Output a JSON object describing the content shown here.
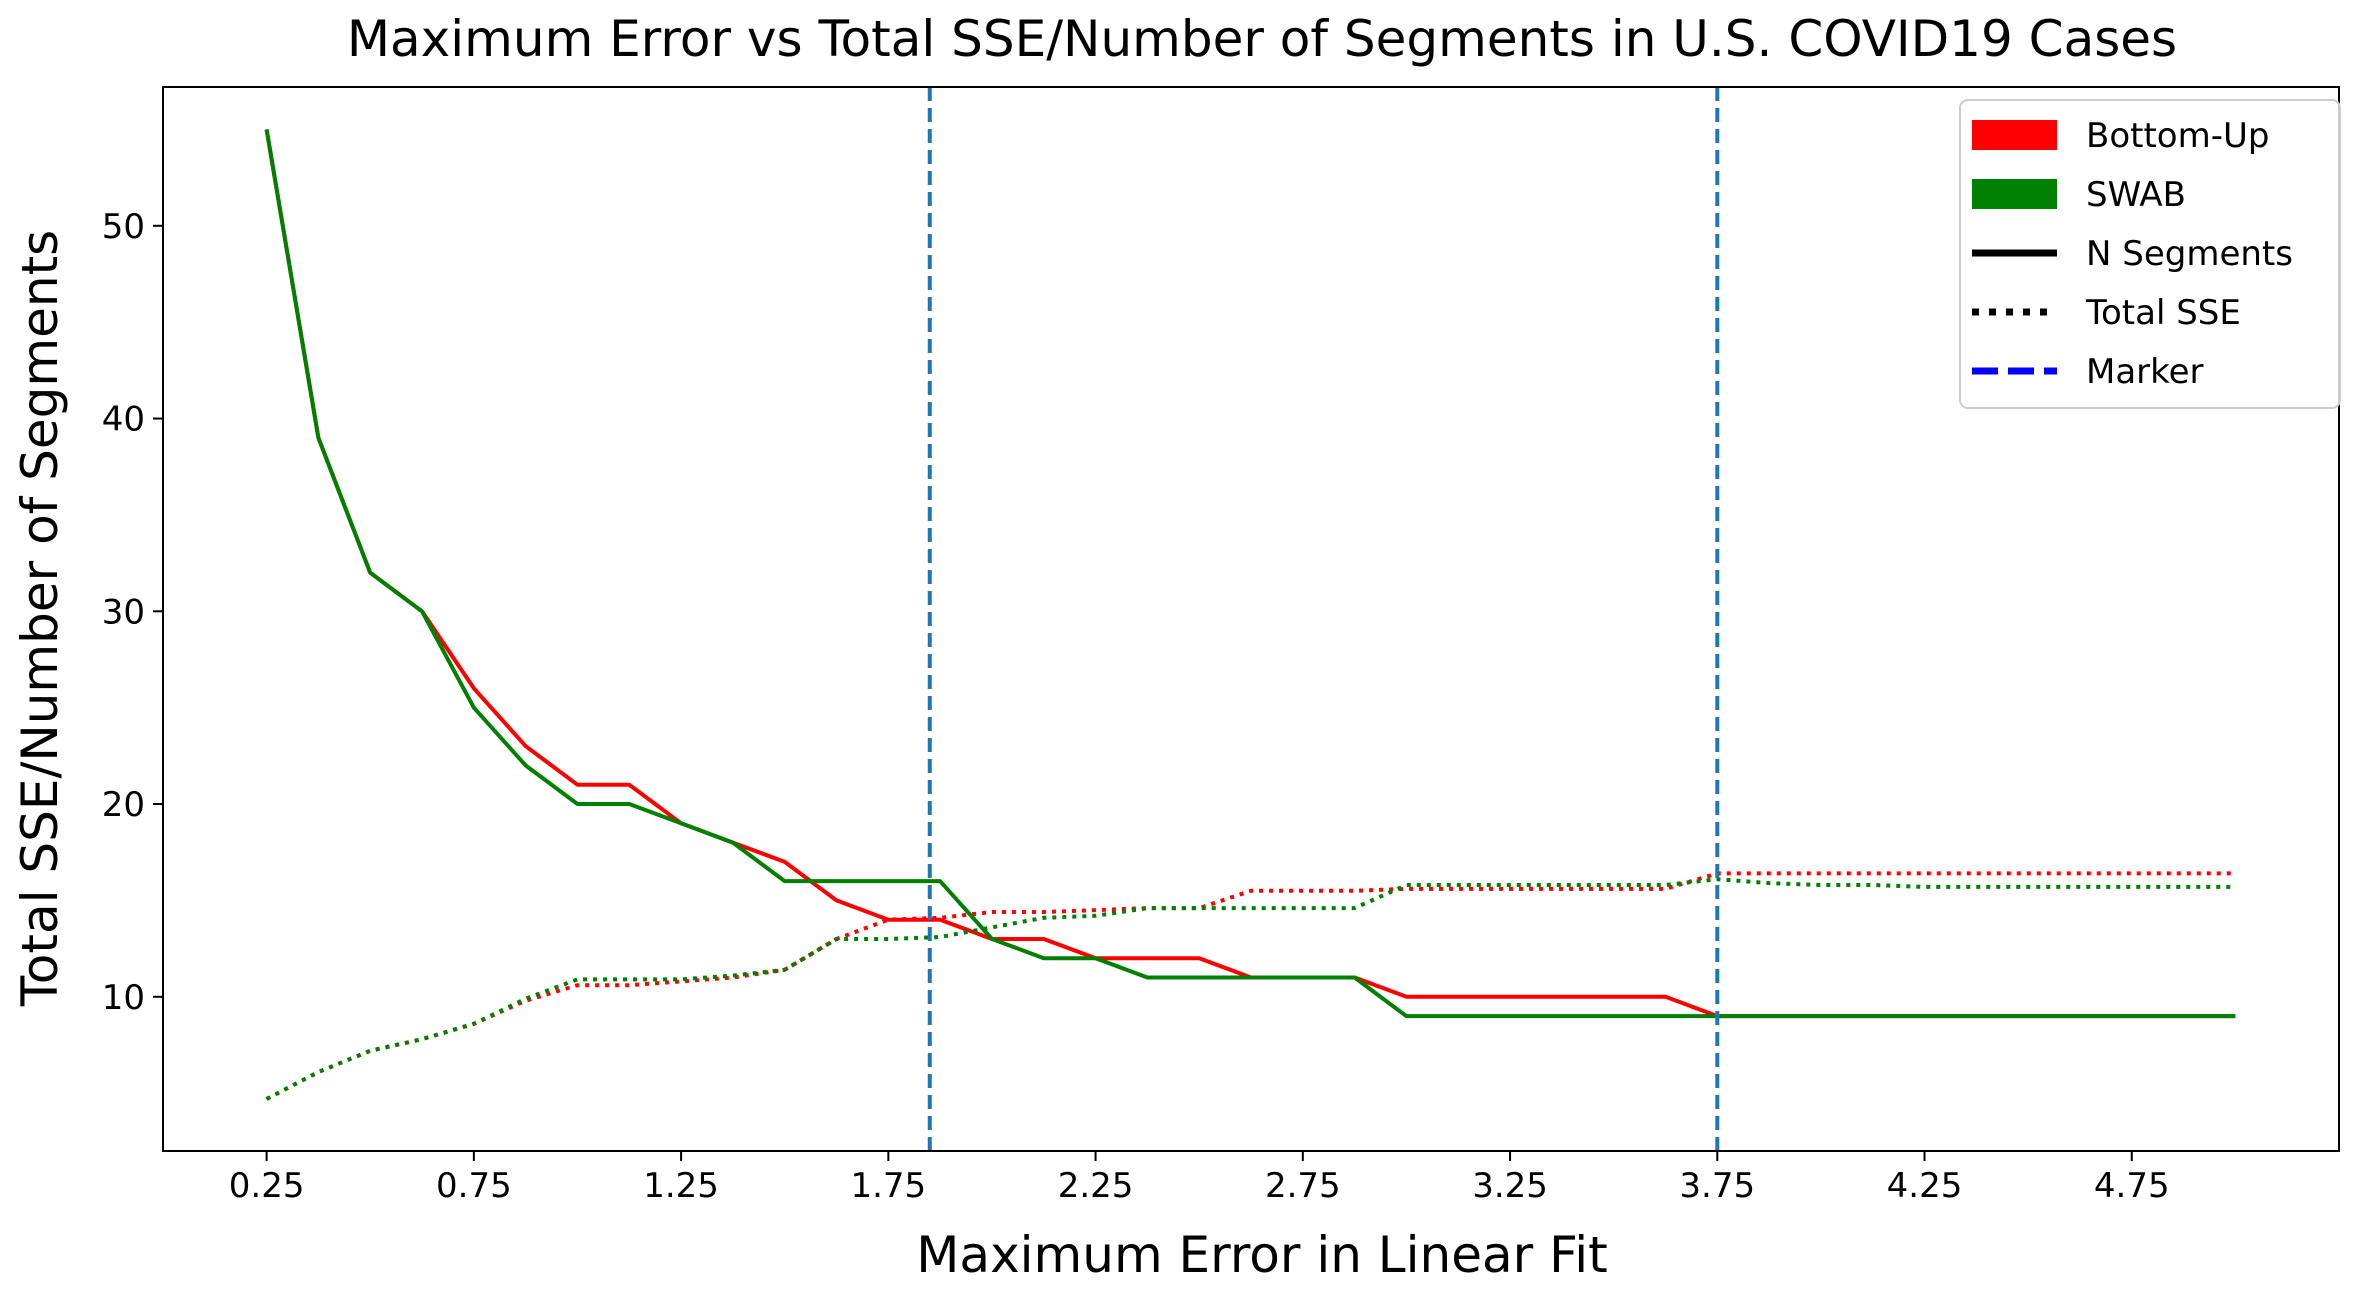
{
  "chart_data": {
    "type": "line",
    "title": "Maximum Error vs Total SSE/Number of Segments in U.S. COVID19 Cases",
    "xlabel": "Maximum Error in Linear Fit",
    "ylabel": "Total SSE/Number of Segments",
    "xlim": [
      0.0,
      5.25
    ],
    "ylim": [
      2.0,
      57.2
    ],
    "x_ticks": [
      "0.25",
      "0.75",
      "1.25",
      "1.75",
      "2.25",
      "2.75",
      "3.25",
      "3.75",
      "4.25",
      "4.75"
    ],
    "x_tick_values": [
      0.25,
      0.75,
      1.25,
      1.75,
      2.25,
      2.75,
      3.25,
      3.75,
      4.25,
      4.75
    ],
    "y_ticks": [
      "10",
      "20",
      "30",
      "40",
      "50"
    ],
    "y_tick_values": [
      10,
      20,
      30,
      40,
      50
    ],
    "grid": false,
    "legend_position": "top-right",
    "legend": [
      {
        "label": "Bottom-Up",
        "style": "patch",
        "color": "#ff0000"
      },
      {
        "label": "SWAB",
        "style": "patch",
        "color": "#008000"
      },
      {
        "label": "N Segments",
        "style": "solid",
        "color": "#000000"
      },
      {
        "label": "Total SSE",
        "style": "dotted",
        "color": "#000000"
      },
      {
        "label": "Marker",
        "style": "dashed",
        "color": "#0000ff"
      }
    ],
    "markers": {
      "x": [
        1.85,
        3.75
      ],
      "color": "#1f77b4",
      "style": "dashed"
    },
    "x": [
      0.25,
      0.375,
      0.5,
      0.625,
      0.75,
      0.875,
      1.0,
      1.125,
      1.25,
      1.375,
      1.5,
      1.625,
      1.75,
      1.875,
      2.0,
      2.125,
      2.25,
      2.375,
      2.5,
      2.625,
      2.75,
      2.875,
      3.0,
      3.125,
      3.25,
      3.375,
      3.5,
      3.625,
      3.75,
      3.875,
      4.0,
      4.125,
      4.25,
      4.375,
      4.5,
      4.625,
      4.75,
      4.875,
      5.0
    ],
    "series": [
      {
        "name": "Bottom-Up",
        "metric": "N Segments",
        "color": "#ff0000",
        "style": "solid",
        "values": [
          55,
          39,
          32,
          30,
          26,
          23,
          21,
          21,
          19,
          18,
          17,
          15,
          14,
          14,
          13,
          13,
          12,
          12,
          12,
          11,
          11,
          11,
          10,
          10,
          10,
          10,
          10,
          10,
          9,
          9,
          9,
          9,
          9,
          9,
          9,
          9,
          9,
          9,
          9
        ]
      },
      {
        "name": "Bottom-Up",
        "metric": "Total SSE",
        "color": "#ff0000",
        "style": "dotted",
        "values": [
          4.7,
          6.1,
          7.2,
          7.8,
          8.6,
          9.8,
          10.6,
          10.6,
          10.8,
          11.0,
          11.4,
          13.0,
          14.0,
          14.1,
          14.4,
          14.4,
          14.5,
          14.6,
          14.6,
          15.5,
          15.5,
          15.5,
          15.6,
          15.6,
          15.6,
          15.6,
          15.6,
          15.6,
          16.4,
          16.4,
          16.4,
          16.4,
          16.4,
          16.4,
          16.4,
          16.4,
          16.4,
          16.4,
          16.4
        ]
      },
      {
        "name": "SWAB",
        "metric": "N Segments",
        "color": "#008000",
        "style": "solid",
        "values": [
          55,
          39,
          32,
          30,
          25,
          22,
          20,
          20,
          19,
          18,
          16,
          16,
          16,
          16,
          13,
          12,
          12,
          11,
          11,
          11,
          11,
          11,
          9,
          9,
          9,
          9,
          9,
          9,
          9,
          9,
          9,
          9,
          9,
          9,
          9,
          9,
          9,
          9,
          9
        ]
      },
      {
        "name": "SWAB",
        "metric": "Total SSE",
        "color": "#008000",
        "style": "dotted",
        "values": [
          4.7,
          6.1,
          7.2,
          7.8,
          8.6,
          9.9,
          10.9,
          10.9,
          10.9,
          11.1,
          11.4,
          13.0,
          13.0,
          13.1,
          13.6,
          14.1,
          14.2,
          14.6,
          14.6,
          14.6,
          14.6,
          14.6,
          15.8,
          15.8,
          15.8,
          15.8,
          15.8,
          15.8,
          16.1,
          15.9,
          15.8,
          15.8,
          15.7,
          15.7,
          15.7,
          15.7,
          15.7,
          15.7,
          15.7
        ]
      }
    ]
  }
}
